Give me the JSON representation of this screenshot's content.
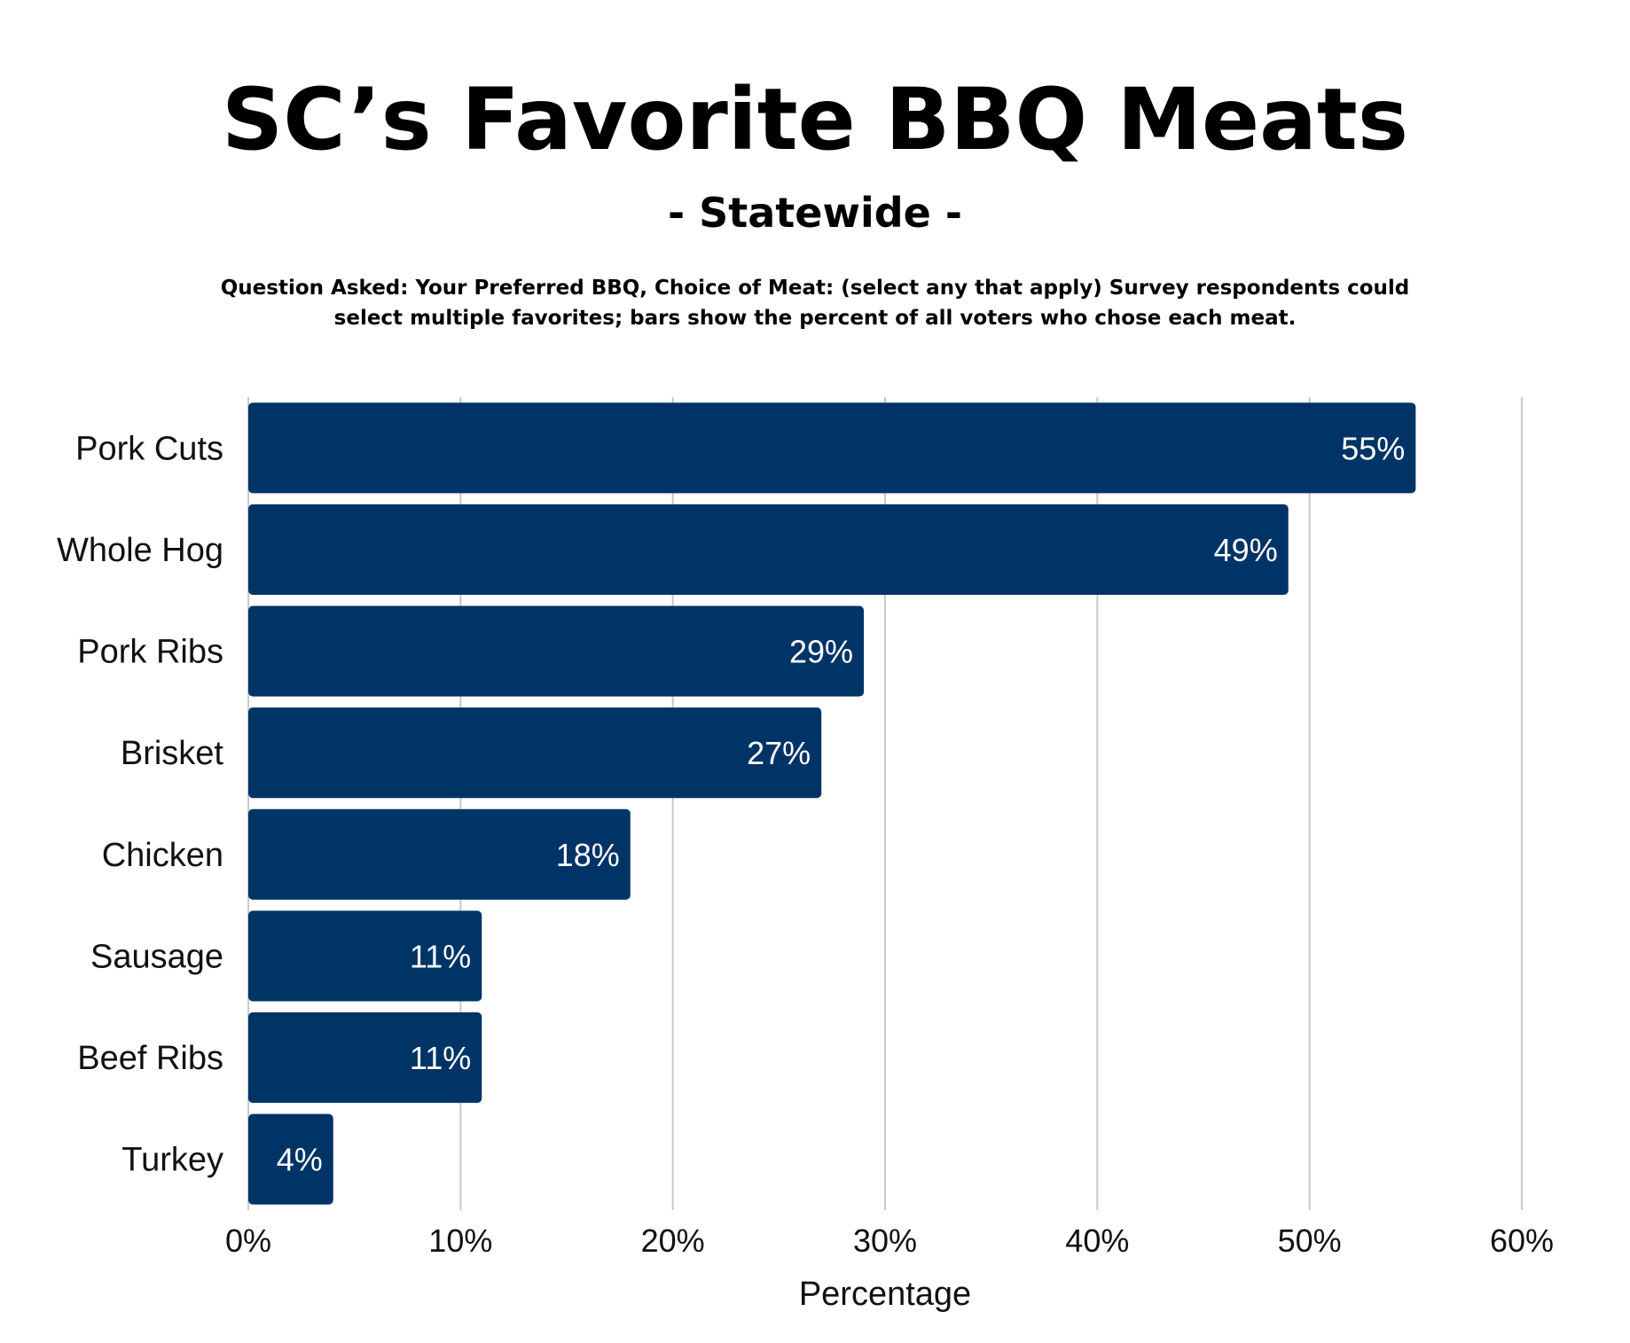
{
  "chart_data": {
    "type": "bar",
    "orientation": "horizontal",
    "title": "SC’s Favorite BBQ Meats",
    "subtitle": "- Statewide -",
    "note": "Question Asked: Your Preferred BBQ, Choice of Meat: (select any that apply) Survey respondents could select multiple favorites; bars show the percent of all voters who chose each meat.",
    "categories": [
      "Pork Cuts",
      "Whole Hog",
      "Pork Ribs",
      "Brisket",
      "Chicken",
      "Sausage",
      "Beef Ribs",
      "Turkey"
    ],
    "values": [
      55,
      49,
      29,
      27,
      18,
      11,
      11,
      4
    ],
    "data_labels": [
      "55%",
      "49%",
      "29%",
      "27%",
      "18%",
      "11%",
      "11%",
      "4%"
    ],
    "xlabel": "Percentage",
    "ylabel": "",
    "xlim": [
      0,
      60
    ],
    "xticks": [
      0,
      10,
      20,
      30,
      40,
      50,
      60
    ],
    "xtick_labels": [
      "0%",
      "10%",
      "20%",
      "30%",
      "40%",
      "50%",
      "60%"
    ],
    "grid": "vertical",
    "bar_color": "#003366",
    "grid_color": "#c8c8c8"
  }
}
